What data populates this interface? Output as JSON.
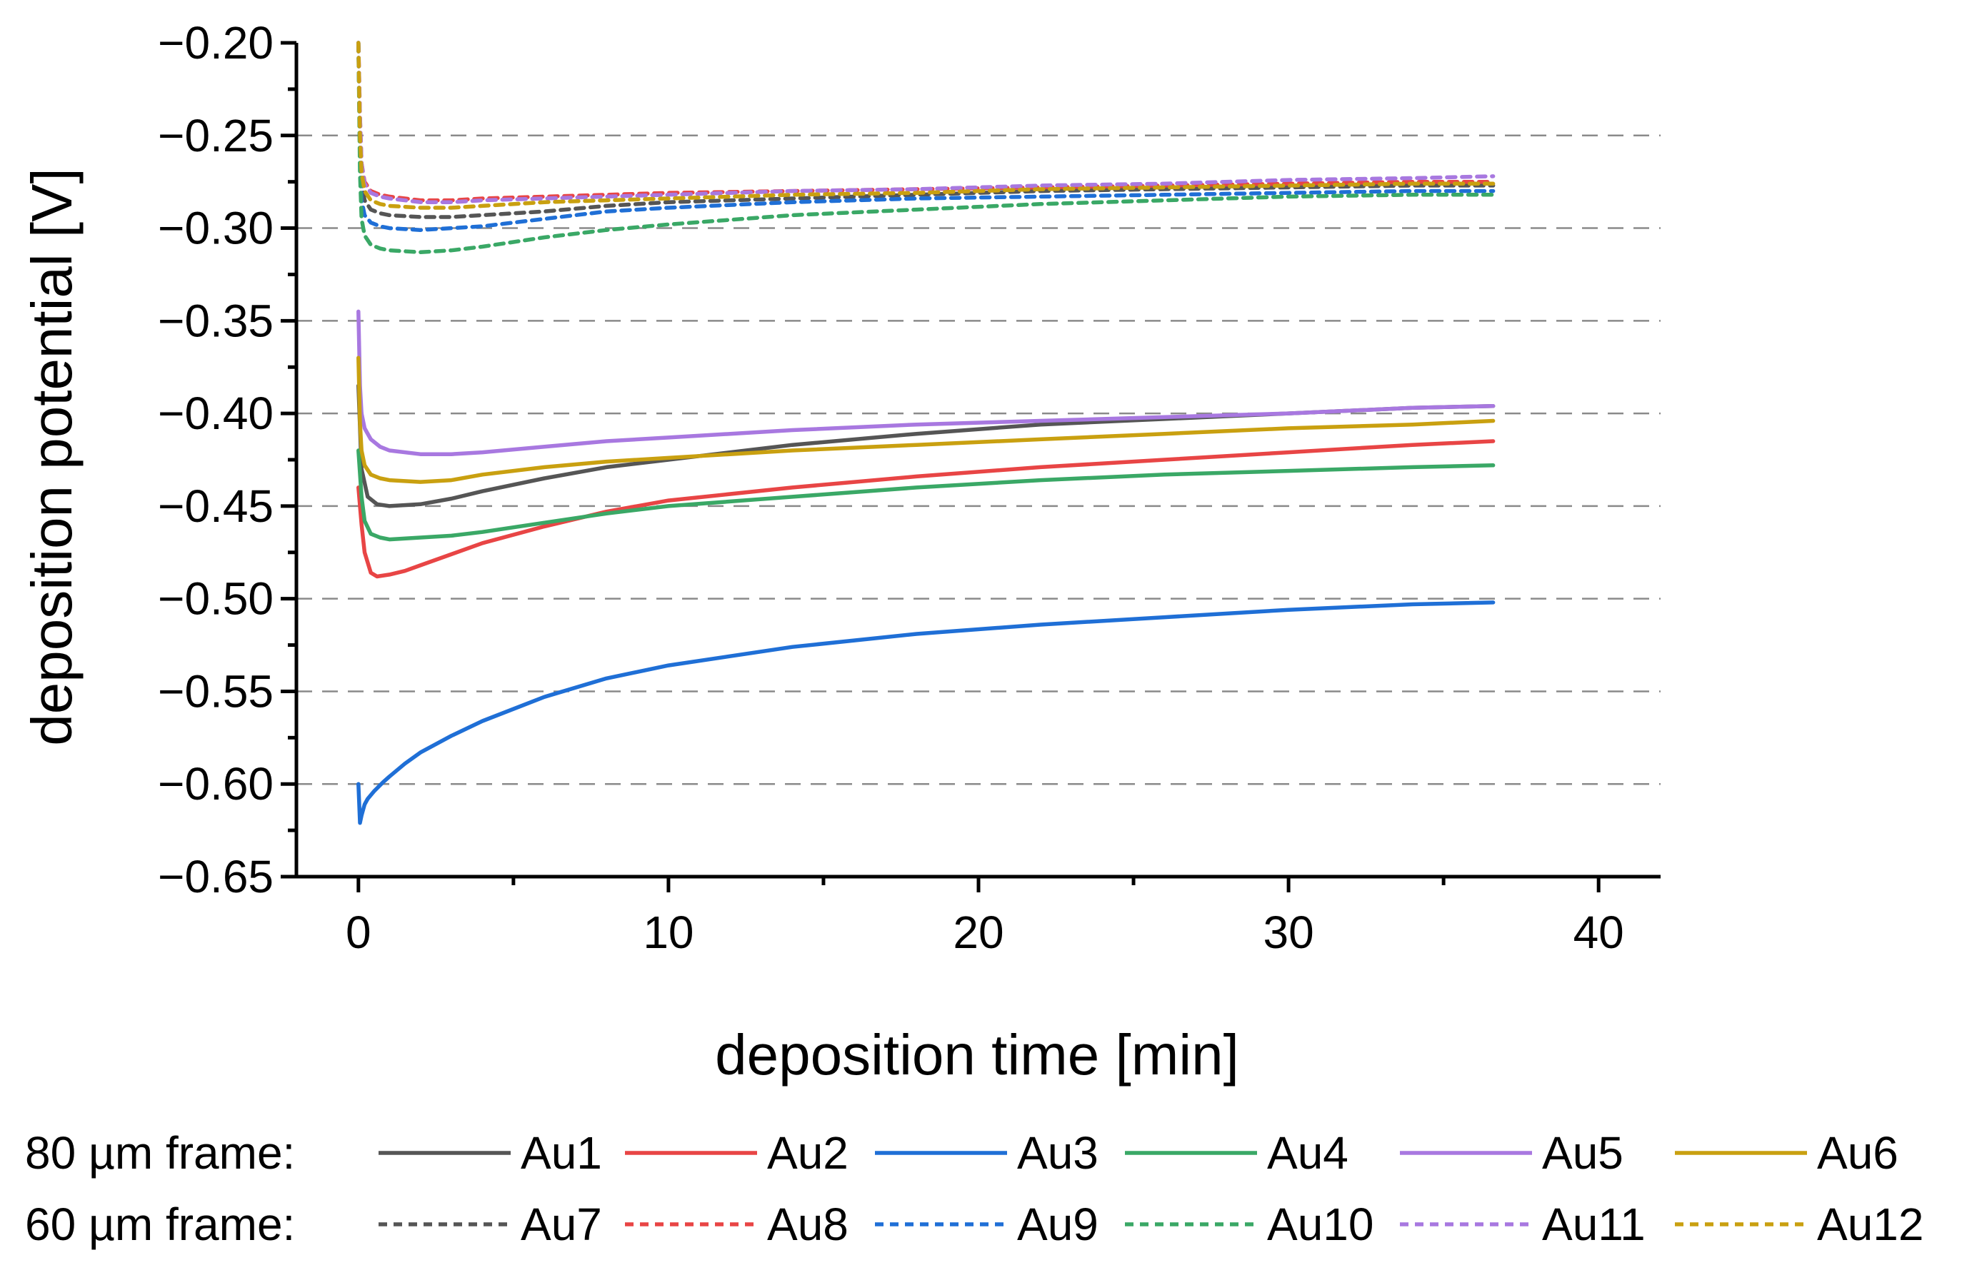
{
  "chart_data": {
    "type": "line",
    "xlabel": "deposition time [min]",
    "ylabel": "deposition potential [V]",
    "xlim": [
      -2,
      42
    ],
    "ylim": [
      -0.65,
      -0.2
    ],
    "x_ticks": [
      0,
      10,
      20,
      30,
      40
    ],
    "x_tick_labels": [
      "0",
      "10",
      "20",
      "30",
      "40"
    ],
    "y_ticks": [
      -0.2,
      -0.25,
      -0.3,
      -0.35,
      -0.4,
      -0.45,
      -0.5,
      -0.55,
      -0.6,
      -0.65
    ],
    "y_tick_labels": [
      "−0.20",
      "−0.25",
      "−0.30",
      "−0.35",
      "−0.40",
      "−0.45",
      "−0.50",
      "−0.55",
      "−0.60",
      "−0.65"
    ],
    "grid_y_dashed": [
      -0.25,
      -0.3,
      -0.35,
      -0.4,
      -0.45,
      -0.5,
      -0.55,
      -0.6
    ],
    "legend": {
      "position": "bottom",
      "groups": [
        {
          "label": "80 µm frame:",
          "style": "solid",
          "series": [
            "Au1",
            "Au2",
            "Au3",
            "Au4",
            "Au5",
            "Au6"
          ]
        },
        {
          "label": "60 µm frame:",
          "style": "dashed",
          "series": [
            "Au7",
            "Au8",
            "Au9",
            "Au10",
            "Au11",
            "Au12"
          ]
        }
      ]
    },
    "series": [
      {
        "name": "Au1",
        "color": "#555555",
        "style": "solid",
        "x": [
          0,
          0.1,
          0.3,
          0.6,
          1,
          2,
          3,
          4,
          6,
          8,
          10,
          14,
          18,
          22,
          26,
          30,
          34,
          36.6
        ],
        "y": [
          -0.385,
          -0.43,
          -0.445,
          -0.449,
          -0.45,
          -0.449,
          -0.446,
          -0.442,
          -0.435,
          -0.429,
          -0.425,
          -0.417,
          -0.411,
          -0.406,
          -0.403,
          -0.4,
          -0.397,
          -0.396
        ]
      },
      {
        "name": "Au2",
        "color": "#e84545",
        "style": "solid",
        "x": [
          0,
          0.1,
          0.2,
          0.4,
          0.6,
          1,
          1.5,
          2,
          3,
          4,
          6,
          8,
          10,
          14,
          18,
          22,
          26,
          30,
          34,
          36.6
        ],
        "y": [
          -0.44,
          -0.46,
          -0.475,
          -0.486,
          -0.488,
          -0.487,
          -0.485,
          -0.482,
          -0.476,
          -0.47,
          -0.461,
          -0.453,
          -0.447,
          -0.44,
          -0.434,
          -0.429,
          -0.425,
          -0.421,
          -0.417,
          -0.415
        ]
      },
      {
        "name": "Au3",
        "color": "#1f6fd6",
        "style": "solid",
        "x": [
          0,
          0.05,
          0.1,
          0.2,
          0.3,
          0.5,
          0.8,
          1,
          1.5,
          2,
          3,
          4,
          6,
          8,
          10,
          14,
          18,
          22,
          26,
          30,
          34,
          36.6
        ],
        "y": [
          -0.6,
          -0.621,
          -0.617,
          -0.611,
          -0.608,
          -0.604,
          -0.599,
          -0.596,
          -0.589,
          -0.583,
          -0.574,
          -0.566,
          -0.553,
          -0.543,
          -0.536,
          -0.526,
          -0.519,
          -0.514,
          -0.51,
          -0.506,
          -0.503,
          -0.502
        ]
      },
      {
        "name": "Au4",
        "color": "#3aa866",
        "style": "solid",
        "x": [
          0,
          0.1,
          0.2,
          0.4,
          0.7,
          1,
          2,
          3,
          4,
          6,
          8,
          10,
          14,
          18,
          22,
          26,
          30,
          34,
          36.6
        ],
        "y": [
          -0.42,
          -0.445,
          -0.458,
          -0.465,
          -0.467,
          -0.468,
          -0.467,
          -0.466,
          -0.464,
          -0.459,
          -0.454,
          -0.45,
          -0.445,
          -0.44,
          -0.436,
          -0.433,
          -0.431,
          -0.429,
          -0.428
        ]
      },
      {
        "name": "Au5",
        "color": "#a878e0",
        "style": "solid",
        "x": [
          0,
          0.05,
          0.1,
          0.2,
          0.4,
          0.7,
          1,
          2,
          3,
          4,
          6,
          8,
          10,
          14,
          18,
          22,
          26,
          30,
          34,
          36.6
        ],
        "y": [
          -0.345,
          -0.385,
          -0.4,
          -0.408,
          -0.414,
          -0.418,
          -0.42,
          -0.422,
          -0.422,
          -0.421,
          -0.418,
          -0.415,
          -0.413,
          -0.409,
          -0.406,
          -0.404,
          -0.402,
          -0.4,
          -0.397,
          -0.396
        ]
      },
      {
        "name": "Au6",
        "color": "#c9a010",
        "style": "solid",
        "x": [
          0,
          0.05,
          0.1,
          0.2,
          0.4,
          0.7,
          1,
          2,
          3,
          4,
          6,
          8,
          10,
          14,
          18,
          22,
          26,
          30,
          34,
          36.6
        ],
        "y": [
          -0.37,
          -0.405,
          -0.42,
          -0.428,
          -0.433,
          -0.435,
          -0.436,
          -0.437,
          -0.436,
          -0.433,
          -0.429,
          -0.426,
          -0.424,
          -0.42,
          -0.417,
          -0.414,
          -0.411,
          -0.408,
          -0.406,
          -0.404
        ]
      },
      {
        "name": "Au7",
        "color": "#555555",
        "style": "dashed",
        "x": [
          0,
          0.05,
          0.1,
          0.2,
          0.4,
          0.7,
          1,
          2,
          3,
          4,
          6,
          8,
          10,
          14,
          18,
          22,
          26,
          30,
          34,
          36.6
        ],
        "y": [
          -0.2,
          -0.25,
          -0.275,
          -0.285,
          -0.29,
          -0.292,
          -0.293,
          -0.294,
          -0.294,
          -0.293,
          -0.291,
          -0.288,
          -0.286,
          -0.284,
          -0.282,
          -0.28,
          -0.279,
          -0.278,
          -0.277,
          -0.277
        ]
      },
      {
        "name": "Au8",
        "color": "#e84545",
        "style": "dashed",
        "x": [
          0,
          0.05,
          0.1,
          0.2,
          0.4,
          0.7,
          1,
          2,
          3,
          4,
          6,
          8,
          10,
          14,
          18,
          22,
          26,
          30,
          34,
          36.6
        ],
        "y": [
          -0.2,
          -0.24,
          -0.265,
          -0.275,
          -0.28,
          -0.282,
          -0.283,
          -0.285,
          -0.285,
          -0.284,
          -0.283,
          -0.282,
          -0.281,
          -0.28,
          -0.279,
          -0.278,
          -0.277,
          -0.276,
          -0.275,
          -0.275
        ]
      },
      {
        "name": "Au9",
        "color": "#1f6fd6",
        "style": "dashed",
        "x": [
          0,
          0.05,
          0.1,
          0.2,
          0.4,
          0.7,
          1,
          2,
          3,
          4,
          6,
          8,
          10,
          14,
          18,
          22,
          26,
          30,
          34,
          36.6
        ],
        "y": [
          -0.2,
          -0.26,
          -0.285,
          -0.293,
          -0.297,
          -0.299,
          -0.3,
          -0.301,
          -0.3,
          -0.299,
          -0.295,
          -0.291,
          -0.289,
          -0.286,
          -0.284,
          -0.283,
          -0.282,
          -0.281,
          -0.28,
          -0.28
        ]
      },
      {
        "name": "Au10",
        "color": "#3aa866",
        "style": "dashed",
        "x": [
          0,
          0.05,
          0.1,
          0.2,
          0.4,
          0.7,
          1,
          2,
          3,
          4,
          6,
          8,
          10,
          14,
          18,
          22,
          26,
          30,
          34,
          36.6
        ],
        "y": [
          -0.2,
          -0.27,
          -0.295,
          -0.304,
          -0.309,
          -0.311,
          -0.312,
          -0.313,
          -0.312,
          -0.31,
          -0.305,
          -0.301,
          -0.298,
          -0.293,
          -0.29,
          -0.287,
          -0.285,
          -0.283,
          -0.282,
          -0.282
        ]
      },
      {
        "name": "Au11",
        "color": "#a878e0",
        "style": "dashed",
        "x": [
          0,
          0.05,
          0.1,
          0.2,
          0.4,
          0.7,
          1,
          2,
          3,
          4,
          6,
          8,
          10,
          14,
          18,
          22,
          26,
          30,
          34,
          36.6
        ],
        "y": [
          -0.2,
          -0.24,
          -0.265,
          -0.276,
          -0.281,
          -0.283,
          -0.284,
          -0.286,
          -0.286,
          -0.285,
          -0.284,
          -0.283,
          -0.282,
          -0.28,
          -0.279,
          -0.277,
          -0.276,
          -0.274,
          -0.273,
          -0.272
        ]
      },
      {
        "name": "Au12",
        "color": "#c9a010",
        "style": "dashed",
        "x": [
          0,
          0.05,
          0.1,
          0.2,
          0.4,
          0.7,
          1,
          2,
          3,
          4,
          6,
          8,
          10,
          14,
          18,
          22,
          26,
          30,
          34,
          36.6
        ],
        "y": [
          -0.2,
          -0.25,
          -0.27,
          -0.28,
          -0.285,
          -0.287,
          -0.288,
          -0.289,
          -0.289,
          -0.288,
          -0.286,
          -0.285,
          -0.284,
          -0.282,
          -0.281,
          -0.279,
          -0.278,
          -0.277,
          -0.276,
          -0.276
        ]
      }
    ]
  }
}
